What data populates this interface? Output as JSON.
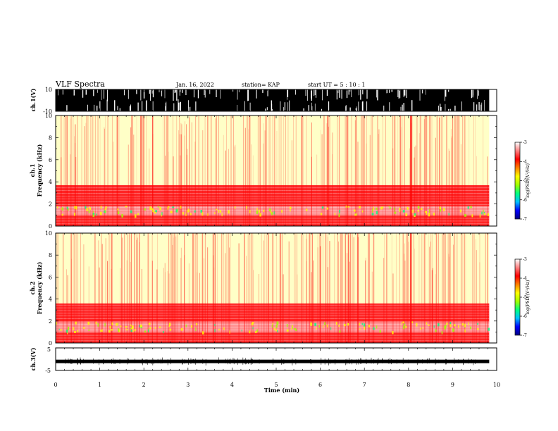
{
  "header": {
    "title": "VLF Spectra",
    "date": "Jan. 16, 2022",
    "station": "station= KAP",
    "start": "start UT =  5 : 10 : 1"
  },
  "chart_data": [
    {
      "type": "line",
      "name": "ch1-waveform",
      "ylabel": "ch.1(V)",
      "ylim": [
        -10,
        10
      ],
      "ytick_labels": [
        "10",
        "-10"
      ],
      "xlim": [
        0,
        10
      ],
      "data_end_min": 9.83,
      "description_fill": "signal saturates between -10 and 10"
    },
    {
      "type": "heatmap",
      "name": "ch1-spectrogram",
      "ylabel": "ch.1 Frequency (kHz)",
      "ylabel_line1": "ch.1",
      "ylabel_line2": "Frequency (kHz)",
      "ylim": [
        0,
        10
      ],
      "ytick_labels": [
        "0",
        "2",
        "4",
        "6",
        "8",
        "10"
      ],
      "xlim": [
        0,
        10
      ],
      "bands_khz": [
        {
          "from": 0.0,
          "to": 1.0,
          "level": -3.9
        },
        {
          "from": 1.0,
          "to": 1.8,
          "level": -3.4
        },
        {
          "from": 1.8,
          "to": 3.7,
          "level": -3.9
        },
        {
          "from": 3.7,
          "to": 10.0,
          "level": -4.7
        }
      ],
      "colorbar": {
        "label": "log(PSD)(V²/Hz)",
        "range": [
          -7,
          -3
        ],
        "tick_labels": [
          "-3",
          "-4",
          "-5",
          "-6",
          "-7"
        ],
        "colors": [
          "#000080",
          "#0000ff",
          "#00c0ff",
          "#00ff80",
          "#a0ff00",
          "#ffff00",
          "#ff8000",
          "#ff0000",
          "#ff8080",
          "#ffffff"
        ]
      }
    },
    {
      "type": "heatmap",
      "name": "ch2-spectrogram",
      "ylabel": "ch.2 Frequency (kHz)",
      "ylabel_line1": "ch.2",
      "ylabel_line2": "Frequency (kHz)",
      "ylim": [
        0,
        10
      ],
      "ytick_labels": [
        "0",
        "2",
        "4",
        "6",
        "8",
        "10"
      ],
      "xlim": [
        0,
        10
      ],
      "bands_khz": [
        {
          "from": 0.0,
          "to": 1.0,
          "level": -3.9
        },
        {
          "from": 1.0,
          "to": 1.9,
          "level": -3.3
        },
        {
          "from": 1.9,
          "to": 3.6,
          "level": -3.9
        },
        {
          "from": 3.6,
          "to": 10.0,
          "level": -4.7
        }
      ],
      "colorbar": {
        "label": "log(PSD)(V²/Hz)",
        "range": [
          -7,
          -3
        ],
        "tick_labels": [
          "-3",
          "-4",
          "-5",
          "-6",
          "-7"
        ],
        "colors": [
          "#000080",
          "#0000ff",
          "#00c0ff",
          "#00ff80",
          "#a0ff00",
          "#ffff00",
          "#ff8000",
          "#ff0000",
          "#ff8080",
          "#ffffff"
        ]
      }
    },
    {
      "type": "line",
      "name": "ch3-waveform",
      "ylabel": "ch.3(V)",
      "ylim": [
        -5,
        5
      ],
      "ytick_labels": [
        "5",
        "-5"
      ],
      "xlim": [
        0,
        10
      ],
      "baseline": -1,
      "data_end_min": 9.83,
      "xlabel": "Time  (min)",
      "xtick_labels": [
        "0",
        "1",
        "2",
        "3",
        "4",
        "5",
        "6",
        "7",
        "8",
        "9",
        "10"
      ]
    }
  ]
}
